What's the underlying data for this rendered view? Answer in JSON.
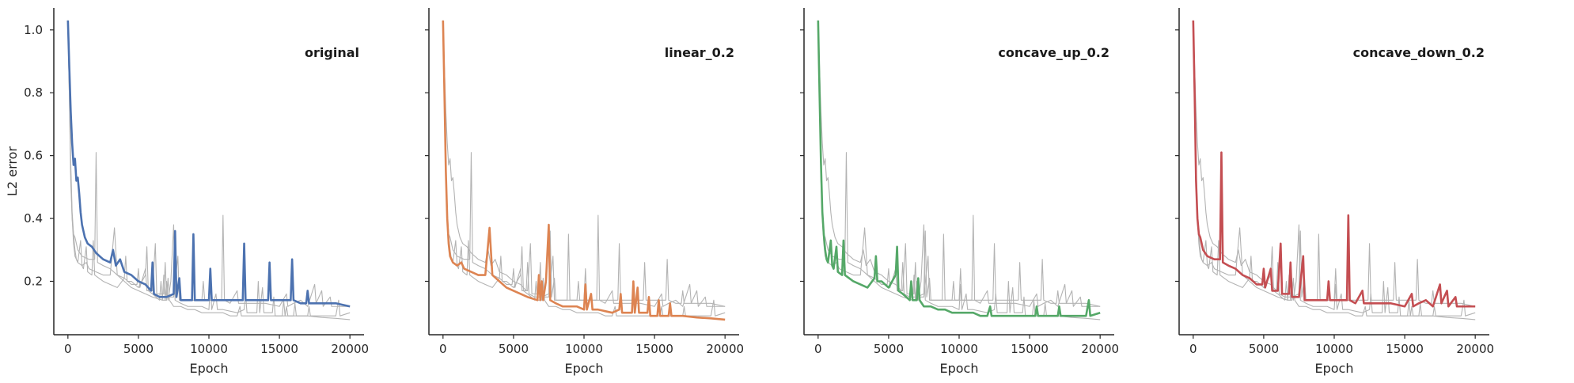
{
  "chart_data": {
    "type": "line",
    "ylabel": "L2 error",
    "xlabel": "Epoch",
    "xlim": [
      -1000,
      21000
    ],
    "ylim": [
      0.03,
      1.07
    ],
    "xticks": [
      0,
      5000,
      10000,
      15000,
      20000
    ],
    "yticks": [
      0.2,
      0.4,
      0.6,
      0.8,
      1.0
    ],
    "ytick_labels": [
      "0.2",
      "0.4",
      "0.6",
      "0.8",
      "1.0"
    ],
    "grid": false,
    "background_color": "#b3b3b3",
    "panels": [
      {
        "title": "original",
        "color": "#4c72b0",
        "points": [
          [
            0,
            1.03
          ],
          [
            100,
            0.88
          ],
          [
            200,
            0.74
          ],
          [
            300,
            0.64
          ],
          [
            400,
            0.57
          ],
          [
            500,
            0.59
          ],
          [
            600,
            0.52
          ],
          [
            700,
            0.53
          ],
          [
            800,
            0.48
          ],
          [
            900,
            0.42
          ],
          [
            1000,
            0.38
          ],
          [
            1200,
            0.34
          ],
          [
            1400,
            0.32
          ],
          [
            1700,
            0.31
          ],
          [
            2000,
            0.29
          ],
          [
            2500,
            0.27
          ],
          [
            3000,
            0.26
          ],
          [
            3200,
            0.3
          ],
          [
            3400,
            0.25
          ],
          [
            3700,
            0.27
          ],
          [
            4000,
            0.23
          ],
          [
            4500,
            0.22
          ],
          [
            5000,
            0.2
          ],
          [
            5500,
            0.19
          ],
          [
            5900,
            0.17
          ],
          [
            6000,
            0.26
          ],
          [
            6100,
            0.16
          ],
          [
            6500,
            0.15
          ],
          [
            7000,
            0.15
          ],
          [
            7500,
            0.16
          ],
          [
            7600,
            0.36
          ],
          [
            7700,
            0.15
          ],
          [
            7900,
            0.21
          ],
          [
            8000,
            0.14
          ],
          [
            8500,
            0.14
          ],
          [
            8800,
            0.14
          ],
          [
            8900,
            0.35
          ],
          [
            9000,
            0.14
          ],
          [
            9500,
            0.14
          ],
          [
            10000,
            0.14
          ],
          [
            10100,
            0.24
          ],
          [
            10200,
            0.14
          ],
          [
            11000,
            0.14
          ],
          [
            12000,
            0.14
          ],
          [
            12400,
            0.14
          ],
          [
            12500,
            0.32
          ],
          [
            12600,
            0.14
          ],
          [
            13500,
            0.14
          ],
          [
            14200,
            0.14
          ],
          [
            14300,
            0.26
          ],
          [
            14400,
            0.14
          ],
          [
            15000,
            0.14
          ],
          [
            15800,
            0.14
          ],
          [
            15900,
            0.27
          ],
          [
            16000,
            0.14
          ],
          [
            16500,
            0.13
          ],
          [
            16900,
            0.13
          ],
          [
            17000,
            0.17
          ],
          [
            17100,
            0.13
          ],
          [
            18000,
            0.13
          ],
          [
            19000,
            0.13
          ],
          [
            20000,
            0.12
          ]
        ]
      },
      {
        "title": "linear_0.2",
        "color": "#dd8452",
        "points": [
          [
            0,
            1.03
          ],
          [
            100,
            0.8
          ],
          [
            200,
            0.55
          ],
          [
            300,
            0.4
          ],
          [
            400,
            0.32
          ],
          [
            500,
            0.28
          ],
          [
            700,
            0.26
          ],
          [
            1000,
            0.25
          ],
          [
            1300,
            0.26
          ],
          [
            1500,
            0.24
          ],
          [
            2000,
            0.23
          ],
          [
            2500,
            0.22
          ],
          [
            3000,
            0.22
          ],
          [
            3300,
            0.37
          ],
          [
            3500,
            0.22
          ],
          [
            4000,
            0.2
          ],
          [
            4500,
            0.18
          ],
          [
            5000,
            0.17
          ],
          [
            6000,
            0.15
          ],
          [
            6700,
            0.14
          ],
          [
            6800,
            0.22
          ],
          [
            6900,
            0.14
          ],
          [
            7000,
            0.2
          ],
          [
            7100,
            0.14
          ],
          [
            7300,
            0.2
          ],
          [
            7500,
            0.38
          ],
          [
            7600,
            0.14
          ],
          [
            8000,
            0.13
          ],
          [
            8500,
            0.12
          ],
          [
            9000,
            0.12
          ],
          [
            9500,
            0.12
          ],
          [
            10000,
            0.11
          ],
          [
            10100,
            0.19
          ],
          [
            10200,
            0.11
          ],
          [
            10500,
            0.16
          ],
          [
            10600,
            0.11
          ],
          [
            11000,
            0.11
          ],
          [
            12000,
            0.1
          ],
          [
            12500,
            0.11
          ],
          [
            12600,
            0.16
          ],
          [
            12700,
            0.1
          ],
          [
            13400,
            0.1
          ],
          [
            13500,
            0.2
          ],
          [
            13600,
            0.1
          ],
          [
            13800,
            0.18
          ],
          [
            13900,
            0.1
          ],
          [
            14500,
            0.1
          ],
          [
            14600,
            0.15
          ],
          [
            14700,
            0.09
          ],
          [
            15200,
            0.09
          ],
          [
            15300,
            0.14
          ],
          [
            15400,
            0.09
          ],
          [
            16000,
            0.09
          ],
          [
            16100,
            0.13
          ],
          [
            16200,
            0.09
          ],
          [
            17000,
            0.09
          ],
          [
            18000,
            0.085
          ],
          [
            19000,
            0.082
          ],
          [
            20000,
            0.078
          ]
        ]
      },
      {
        "title": "concave_up_0.2",
        "color": "#55a868",
        "points": [
          [
            0,
            1.03
          ],
          [
            100,
            0.8
          ],
          [
            200,
            0.58
          ],
          [
            300,
            0.42
          ],
          [
            400,
            0.35
          ],
          [
            500,
            0.3
          ],
          [
            600,
            0.27
          ],
          [
            700,
            0.26
          ],
          [
            900,
            0.33
          ],
          [
            1000,
            0.25
          ],
          [
            1100,
            0.24
          ],
          [
            1300,
            0.31
          ],
          [
            1400,
            0.23
          ],
          [
            1700,
            0.22
          ],
          [
            1800,
            0.33
          ],
          [
            1900,
            0.22
          ],
          [
            2200,
            0.21
          ],
          [
            2500,
            0.2
          ],
          [
            3000,
            0.19
          ],
          [
            3500,
            0.18
          ],
          [
            4000,
            0.21
          ],
          [
            4100,
            0.28
          ],
          [
            4200,
            0.2
          ],
          [
            4500,
            0.2
          ],
          [
            5000,
            0.18
          ],
          [
            5500,
            0.22
          ],
          [
            5600,
            0.31
          ],
          [
            5700,
            0.17
          ],
          [
            6000,
            0.16
          ],
          [
            6500,
            0.14
          ],
          [
            6600,
            0.2
          ],
          [
            6700,
            0.14
          ],
          [
            7000,
            0.14
          ],
          [
            7100,
            0.21
          ],
          [
            7200,
            0.14
          ],
          [
            7500,
            0.12
          ],
          [
            8000,
            0.12
          ],
          [
            8500,
            0.11
          ],
          [
            9000,
            0.11
          ],
          [
            9500,
            0.1
          ],
          [
            10000,
            0.1
          ],
          [
            10500,
            0.1
          ],
          [
            11000,
            0.1
          ],
          [
            11500,
            0.09
          ],
          [
            12000,
            0.09
          ],
          [
            12200,
            0.12
          ],
          [
            12300,
            0.09
          ],
          [
            13000,
            0.09
          ],
          [
            14000,
            0.09
          ],
          [
            15000,
            0.09
          ],
          [
            15400,
            0.09
          ],
          [
            15500,
            0.12
          ],
          [
            15600,
            0.09
          ],
          [
            16000,
            0.09
          ],
          [
            17000,
            0.09
          ],
          [
            17100,
            0.12
          ],
          [
            17200,
            0.09
          ],
          [
            18000,
            0.09
          ],
          [
            19000,
            0.09
          ],
          [
            19200,
            0.14
          ],
          [
            19300,
            0.09
          ],
          [
            20000,
            0.1
          ]
        ]
      },
      {
        "title": "concave_down_0.2",
        "color": "#c44e52",
        "points": [
          [
            0,
            1.03
          ],
          [
            100,
            0.8
          ],
          [
            200,
            0.52
          ],
          [
            300,
            0.4
          ],
          [
            400,
            0.35
          ],
          [
            500,
            0.34
          ],
          [
            700,
            0.3
          ],
          [
            1000,
            0.28
          ],
          [
            1500,
            0.27
          ],
          [
            1900,
            0.27
          ],
          [
            2000,
            0.61
          ],
          [
            2100,
            0.26
          ],
          [
            2500,
            0.25
          ],
          [
            3000,
            0.24
          ],
          [
            3500,
            0.22
          ],
          [
            4000,
            0.21
          ],
          [
            4500,
            0.19
          ],
          [
            4900,
            0.19
          ],
          [
            5000,
            0.24
          ],
          [
            5100,
            0.18
          ],
          [
            5500,
            0.24
          ],
          [
            5600,
            0.17
          ],
          [
            6000,
            0.17
          ],
          [
            6200,
            0.32
          ],
          [
            6300,
            0.16
          ],
          [
            6800,
            0.16
          ],
          [
            6900,
            0.26
          ],
          [
            7000,
            0.15
          ],
          [
            7500,
            0.15
          ],
          [
            7800,
            0.28
          ],
          [
            7900,
            0.14
          ],
          [
            8500,
            0.14
          ],
          [
            9000,
            0.14
          ],
          [
            9500,
            0.14
          ],
          [
            9600,
            0.2
          ],
          [
            9700,
            0.14
          ],
          [
            10000,
            0.14
          ],
          [
            10500,
            0.14
          ],
          [
            10900,
            0.14
          ],
          [
            11000,
            0.41
          ],
          [
            11100,
            0.14
          ],
          [
            11500,
            0.13
          ],
          [
            12000,
            0.17
          ],
          [
            12100,
            0.13
          ],
          [
            13000,
            0.13
          ],
          [
            14000,
            0.13
          ],
          [
            15000,
            0.12
          ],
          [
            15500,
            0.16
          ],
          [
            15600,
            0.12
          ],
          [
            16000,
            0.13
          ],
          [
            16500,
            0.14
          ],
          [
            17000,
            0.12
          ],
          [
            17500,
            0.19
          ],
          [
            17600,
            0.13
          ],
          [
            18000,
            0.17
          ],
          [
            18100,
            0.12
          ],
          [
            18600,
            0.15
          ],
          [
            18700,
            0.12
          ],
          [
            19000,
            0.12
          ],
          [
            19500,
            0.12
          ],
          [
            20000,
            0.12
          ]
        ]
      }
    ]
  }
}
